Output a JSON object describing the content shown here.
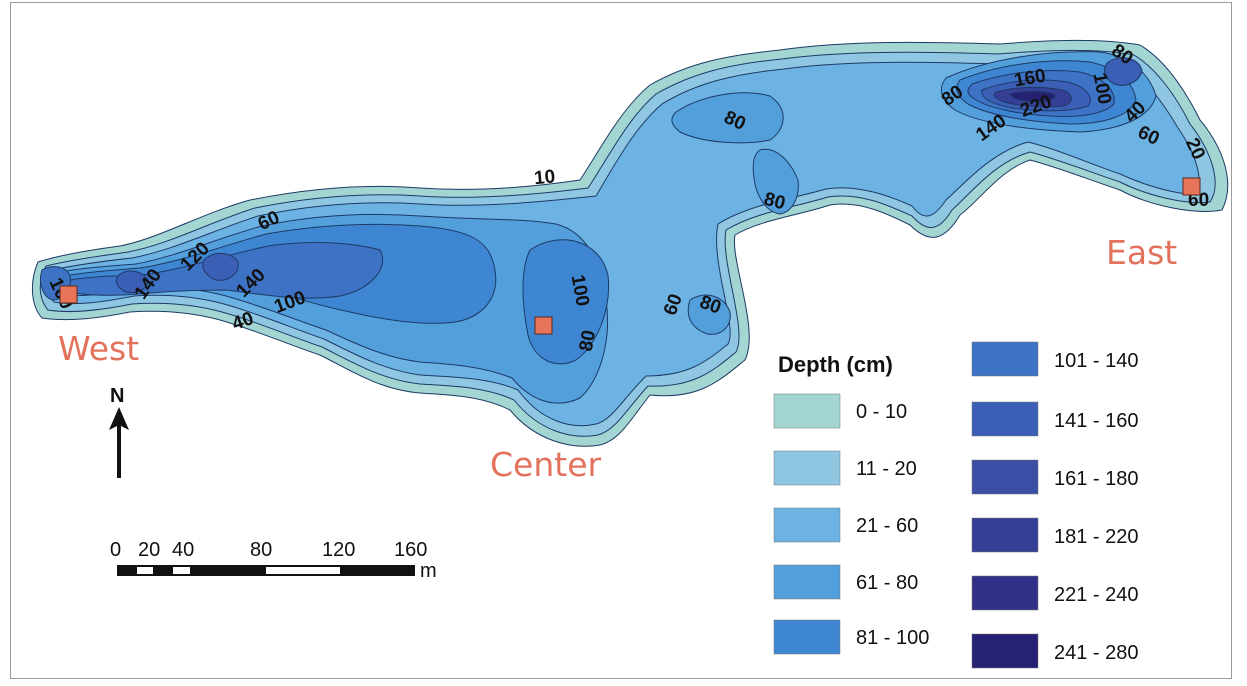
{
  "map": {
    "contour_labels": [
      "10",
      "60",
      "120",
      "140",
      "140",
      "100",
      "100",
      "40",
      "100",
      "80",
      "60",
      "80",
      "80",
      "80",
      "80",
      "160",
      "100",
      "140",
      "220",
      "80",
      "40",
      "60",
      "20",
      "60"
    ],
    "sites": [
      {
        "name": "West"
      },
      {
        "name": "Center"
      },
      {
        "name": "East"
      }
    ],
    "site_marker_color": "#e8745a",
    "north_arrow_label": "N",
    "scale_bar": {
      "ticks": [
        "0",
        "20",
        "40",
        "80",
        "120",
        "160"
      ],
      "unit": "m"
    },
    "legend": {
      "title": "Depth (cm)",
      "classes": [
        {
          "label": "0 - 10",
          "color": "#a3d6d2"
        },
        {
          "label": "11 - 20",
          "color": "#8fc7e2"
        },
        {
          "label": "21 - 60",
          "color": "#6cb3e4"
        },
        {
          "label": "61 - 80",
          "color": "#539fdc"
        },
        {
          "label": "81 - 100",
          "color": "#3f86d2"
        },
        {
          "label": "101 - 140",
          "color": "#3d72c5"
        },
        {
          "label": "141 - 160",
          "color": "#3c5fb6"
        },
        {
          "label": "161 - 180",
          "color": "#3a4ea6"
        },
        {
          "label": "181 - 220",
          "color": "#363f96"
        },
        {
          "label": "221 - 240",
          "color": "#2f3086"
        },
        {
          "label": "241 - 280",
          "color": "#272173"
        }
      ]
    }
  }
}
